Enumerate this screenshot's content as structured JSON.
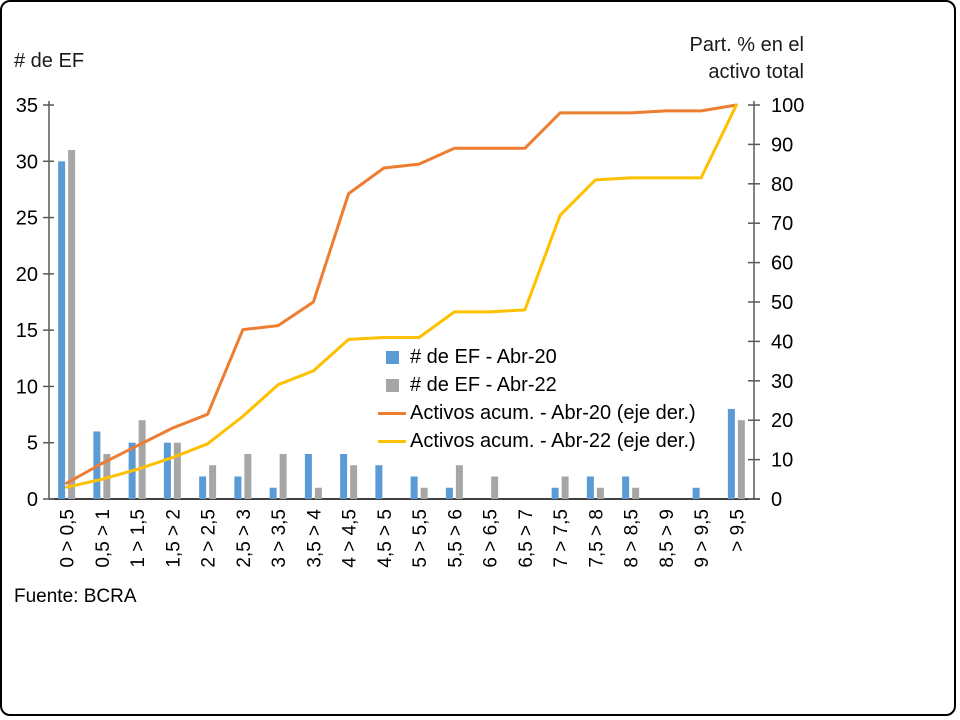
{
  "chart_data": {
    "type": "bar+line",
    "categories": [
      "0 > 0,5",
      "0,5 > 1",
      "1 > 1,5",
      "1,5 > 2",
      "2 > 2,5",
      "2,5 > 3",
      "3 > 3,5",
      "3,5 > 4",
      "4 > 4,5",
      "4,5 > 5",
      "5 > 5,5",
      "5,5 > 6",
      "6 > 6,5",
      "6,5 > 7",
      "7 > 7,5",
      "7,5 > 8",
      "8 > 8,5",
      "8,5 > 9",
      "9 > 9,5",
      "> 9,5"
    ],
    "bar_series": [
      {
        "name": "# de EF - Abr-20",
        "color": "#5B9BD5",
        "axis": "left",
        "values": [
          30,
          6,
          5,
          5,
          2,
          2,
          1,
          4,
          4,
          3,
          2,
          1,
          0,
          0,
          1,
          2,
          2,
          0,
          1,
          8
        ]
      },
      {
        "name": "# de EF - Abr-22",
        "color": "#A6A6A6",
        "axis": "left",
        "values": [
          31,
          4,
          7,
          5,
          3,
          4,
          4,
          1,
          3,
          0,
          1,
          3,
          2,
          0,
          2,
          1,
          1,
          0,
          0,
          7
        ]
      }
    ],
    "line_series": [
      {
        "name": "Activos acum. - Abr-20 (eje der.)",
        "color": "#ED7D31",
        "axis": "right",
        "values": [
          4,
          9,
          13.5,
          18,
          21.5,
          43,
          44,
          50,
          77.5,
          84,
          85,
          89,
          89,
          89,
          98,
          98,
          98,
          98.5,
          98.5,
          100
        ]
      },
      {
        "name": "Activos acum. - Abr-22 (eje der.)",
        "color": "#FFC000",
        "axis": "right",
        "values": [
          3,
          5,
          7.5,
          10.5,
          14,
          21,
          29,
          32.5,
          40.5,
          41,
          41,
          47.5,
          47.5,
          48,
          72,
          81,
          81.5,
          81.5,
          81.5,
          100
        ]
      }
    ],
    "left_axis": {
      "title": "# de EF",
      "min": 0,
      "max": 35,
      "step": 5
    },
    "right_axis": {
      "title_line1": "Part. % en el",
      "title_line2": "activo total",
      "min": 0,
      "max": 100,
      "step": 10
    },
    "grid": false,
    "legend_position": "inside-right",
    "source": "Fuente: BCRA"
  }
}
